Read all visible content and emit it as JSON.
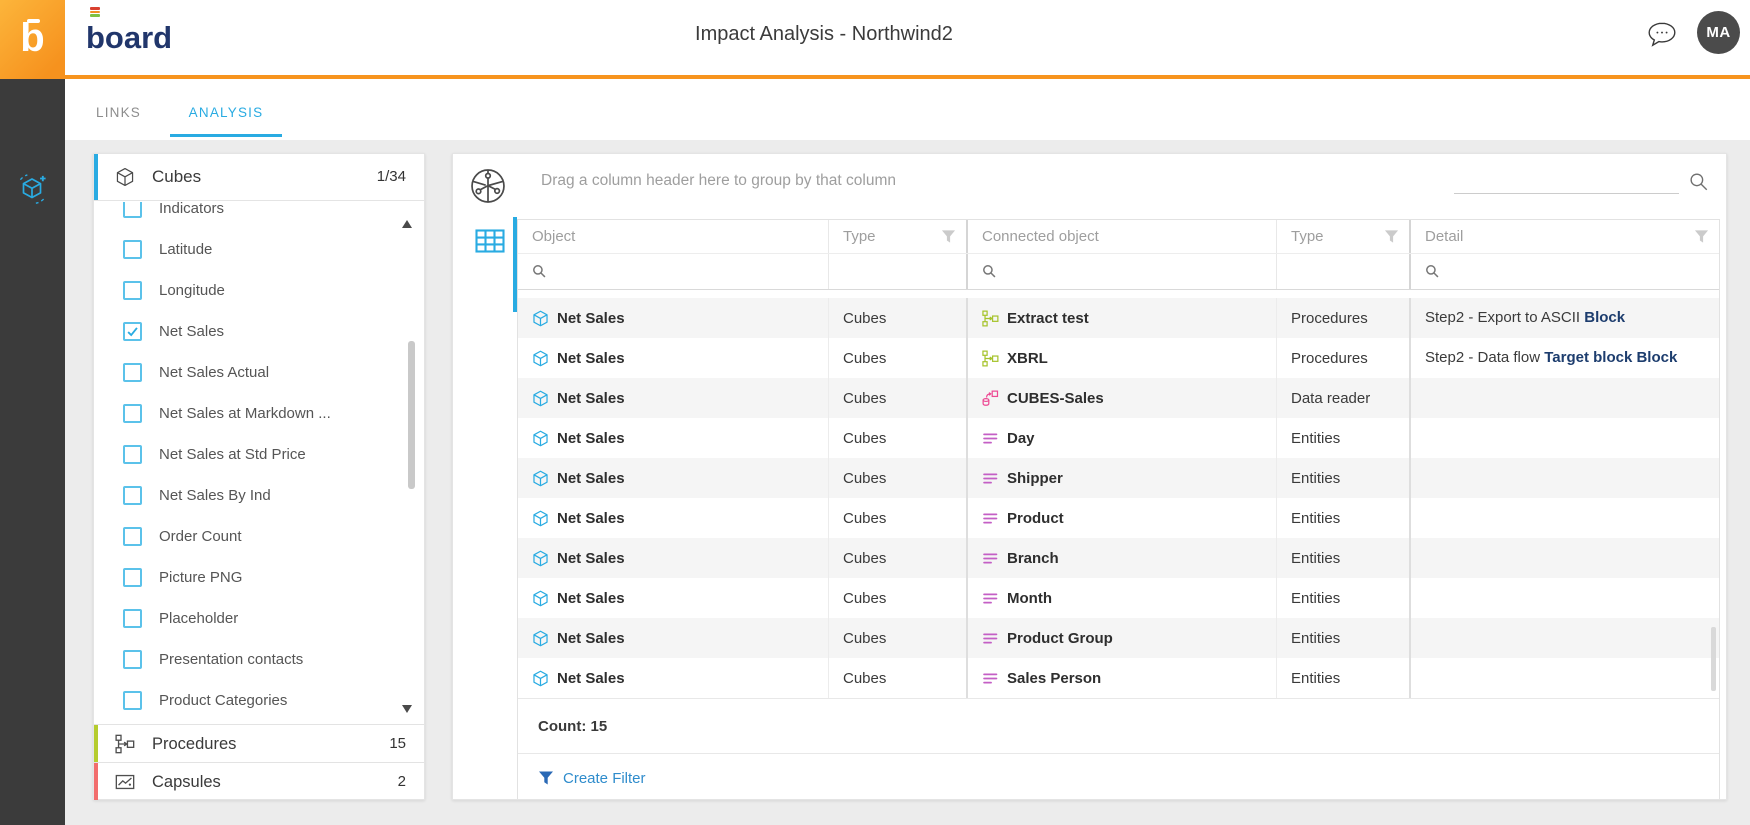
{
  "header": {
    "logo_letter": "b",
    "logo_text": "board",
    "title": "Impact Analysis - Northwind2",
    "avatar_initials": "MA"
  },
  "tabs": [
    {
      "label": "LINKS",
      "active": false
    },
    {
      "label": "ANALYSIS",
      "active": true
    }
  ],
  "left_panel": {
    "cubes": {
      "label": "Cubes",
      "count": "1/34"
    },
    "items": [
      {
        "label": "Indicators",
        "checked": false
      },
      {
        "label": "Latitude",
        "checked": false
      },
      {
        "label": "Longitude",
        "checked": false
      },
      {
        "label": "Net Sales",
        "checked": true
      },
      {
        "label": "Net Sales Actual",
        "checked": false
      },
      {
        "label": "Net Sales at Markdown ...",
        "checked": false
      },
      {
        "label": "Net Sales at Std Price",
        "checked": false
      },
      {
        "label": "Net Sales By Ind",
        "checked": false
      },
      {
        "label": "Order Count",
        "checked": false
      },
      {
        "label": "Picture PNG",
        "checked": false
      },
      {
        "label": "Placeholder",
        "checked": false
      },
      {
        "label": "Presentation contacts",
        "checked": false
      },
      {
        "label": "Product Categories",
        "checked": false
      }
    ],
    "procedures": {
      "label": "Procedures",
      "count": "15"
    },
    "capsules": {
      "label": "Capsules",
      "count": "2"
    }
  },
  "main": {
    "group_hint": "Drag a column header here to group by that column",
    "search": {
      "value": "",
      "placeholder": ""
    },
    "columns": [
      "Object",
      "Type",
      "Connected object",
      "Type",
      "Detail"
    ],
    "column_filter_values": [
      "",
      "",
      "",
      "",
      ""
    ],
    "rows": [
      {
        "object": "Net Sales",
        "object_icon": "cube-icon",
        "type": "Cubes",
        "connected": "Extract test",
        "connected_icon": "procedure-icon",
        "ctype": "Procedures",
        "detail": "Step2 - Export to ASCII ",
        "detail_bold": "Block"
      },
      {
        "object": "Net Sales",
        "object_icon": "cube-icon",
        "type": "Cubes",
        "connected": "XBRL",
        "connected_icon": "procedure-icon",
        "ctype": "Procedures",
        "detail": "Step2 - Data flow ",
        "detail_bold": "Target block Block"
      },
      {
        "object": "Net Sales",
        "object_icon": "cube-icon",
        "type": "Cubes",
        "connected": "CUBES-Sales",
        "connected_icon": "datareader-icon",
        "ctype": "Data reader",
        "detail": "",
        "detail_bold": ""
      },
      {
        "object": "Net Sales",
        "object_icon": "cube-icon",
        "type": "Cubes",
        "connected": "Day",
        "connected_icon": "entity-icon",
        "ctype": "Entities",
        "detail": "",
        "detail_bold": ""
      },
      {
        "object": "Net Sales",
        "object_icon": "cube-icon",
        "type": "Cubes",
        "connected": "Shipper",
        "connected_icon": "entity-icon",
        "ctype": "Entities",
        "detail": "",
        "detail_bold": ""
      },
      {
        "object": "Net Sales",
        "object_icon": "cube-icon",
        "type": "Cubes",
        "connected": "Product",
        "connected_icon": "entity-icon",
        "ctype": "Entities",
        "detail": "",
        "detail_bold": ""
      },
      {
        "object": "Net Sales",
        "object_icon": "cube-icon",
        "type": "Cubes",
        "connected": "Branch",
        "connected_icon": "entity-icon",
        "ctype": "Entities",
        "detail": "",
        "detail_bold": ""
      },
      {
        "object": "Net Sales",
        "object_icon": "cube-icon",
        "type": "Cubes",
        "connected": "Month",
        "connected_icon": "entity-icon",
        "ctype": "Entities",
        "detail": "",
        "detail_bold": ""
      },
      {
        "object": "Net Sales",
        "object_icon": "cube-icon",
        "type": "Cubes",
        "connected": "Product Group",
        "connected_icon": "entity-icon",
        "ctype": "Entities",
        "detail": "",
        "detail_bold": ""
      },
      {
        "object": "Net Sales",
        "object_icon": "cube-icon",
        "type": "Cubes",
        "connected": "Sales Person",
        "connected_icon": "entity-icon",
        "ctype": "Entities",
        "detail": "",
        "detail_bold": ""
      }
    ],
    "count_label": "Count: 15",
    "create_filter_label": "Create Filter"
  },
  "colors": {
    "accent_blue": "#29abe2",
    "orange": "#f7941e",
    "cube_blue": "#29abe2",
    "procedure_green": "#a6c32c",
    "datareader_pink": "#ed4a94",
    "entity_violet": "#c45fc5",
    "procedures_accent": "#b5cc2e",
    "capsules_accent": "#f26d6d",
    "detail_navy": "#1d3d6e",
    "create_filter_blue": "#2a69b5"
  }
}
